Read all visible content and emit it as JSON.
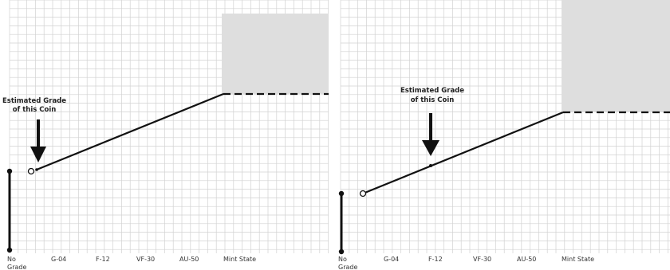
{
  "charts": [
    {
      "annotation_line1": "Estimated Grade",
      "annotation_line2": "of this Coin",
      "x_labels": [
        "No",
        "Grade",
        "G-04",
        "F-12",
        "VF-30",
        "AU-50",
        "Mint State"
      ]
    },
    {
      "annotation_line1": "Estimated Grade",
      "annotation_line2": "of this Coin",
      "x_labels": [
        "No",
        "Grade",
        "G-04",
        "F-12",
        "VF-30",
        "AU-50",
        "Mint State"
      ]
    }
  ],
  "colors": {
    "grid": "#d2d2d2",
    "shaded_region": "#dedede",
    "line": "#111111"
  }
}
